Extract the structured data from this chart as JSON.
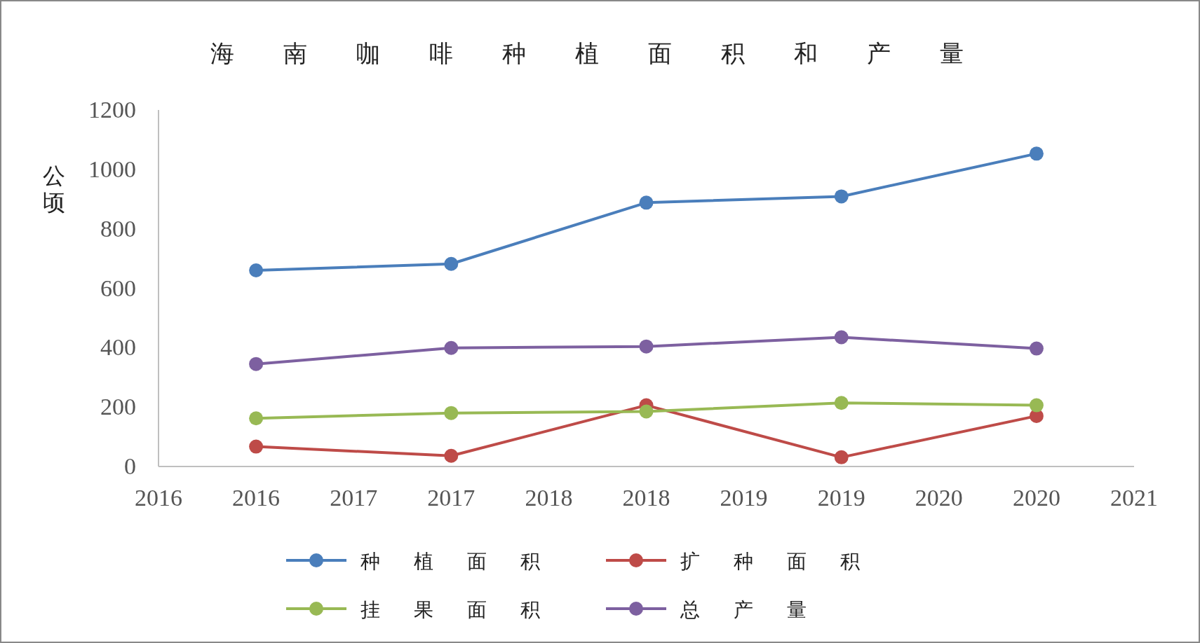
{
  "chart_data": {
    "type": "line",
    "title": "海南咖啡种植面积和产量",
    "ylabel": "公顷",
    "x": [
      2016.5,
      2017.5,
      2018.5,
      2019.5,
      2020.5
    ],
    "xlim": [
      2016,
      2021
    ],
    "xticks": [
      {
        "value": 2016,
        "label": "2016"
      },
      {
        "value": 2016.5,
        "label": "2016"
      },
      {
        "value": 2017,
        "label": "2017"
      },
      {
        "value": 2017.5,
        "label": "2017"
      },
      {
        "value": 2018,
        "label": "2018"
      },
      {
        "value": 2018.5,
        "label": "2018"
      },
      {
        "value": 2019,
        "label": "2019"
      },
      {
        "value": 2019.5,
        "label": "2019"
      },
      {
        "value": 2020,
        "label": "2020"
      },
      {
        "value": 2020.5,
        "label": "2020"
      },
      {
        "value": 2021,
        "label": "2021"
      }
    ],
    "ylim": [
      0,
      1200
    ],
    "yticks": [
      0,
      200,
      400,
      600,
      800,
      1000,
      1200
    ],
    "grid": false,
    "legend": "bottom",
    "marker": "circle",
    "series": [
      {
        "name": "种植面积",
        "color": "#4a7ebb",
        "values": [
          660,
          682,
          888,
          909,
          1053
        ]
      },
      {
        "name": "扩种面积",
        "color": "#be4b48",
        "values": [
          67,
          36,
          206,
          31,
          170
        ]
      },
      {
        "name": "挂果面积",
        "color": "#98b954",
        "values": [
          162,
          180,
          185,
          214,
          206
        ]
      },
      {
        "name": "总产量",
        "color": "#7d60a0",
        "values": [
          345,
          399,
          404,
          435,
          397
        ]
      }
    ]
  }
}
